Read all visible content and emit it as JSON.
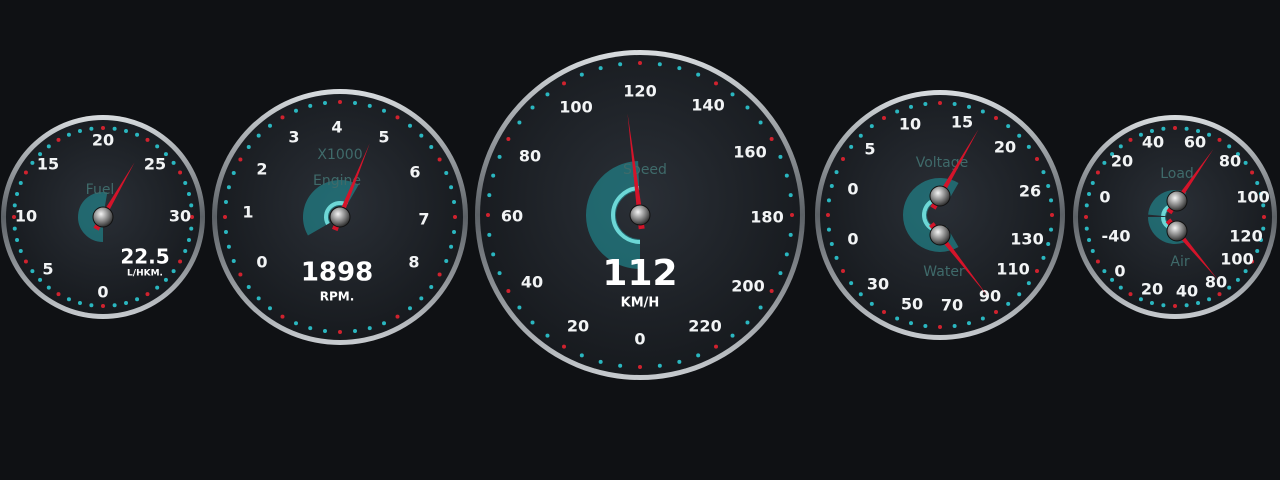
{
  "gauges": [
    {
      "dials": [
        {
          "label": "Fuel",
          "ticks": [
            0,
            5,
            10,
            15,
            20,
            25,
            30
          ]
        }
      ],
      "reading": 22.5,
      "unit": "L/HKM."
    },
    {
      "multiplier": "X1000",
      "dials": [
        {
          "label": "Engine",
          "ticks": [
            0,
            1,
            2,
            3,
            4,
            5,
            6,
            7,
            8
          ]
        }
      ],
      "reading": 1898,
      "unit": "RPM."
    },
    {
      "dials": [
        {
          "label": "Speed",
          "ticks": [
            0,
            20,
            40,
            60,
            80,
            100,
            120,
            140,
            160,
            180,
            200,
            220
          ]
        }
      ],
      "reading": 112,
      "unit": "KM/H"
    },
    {
      "dials": [
        {
          "label": "Voltage",
          "ticks": [
            0,
            5,
            10,
            15,
            20,
            26
          ]
        },
        {
          "label": "Water",
          "ticks": [
            0,
            30,
            50,
            70,
            90,
            110,
            130
          ]
        }
      ]
    },
    {
      "dials": [
        {
          "label": "Load",
          "ticks": [
            0,
            20,
            40,
            60,
            80,
            100
          ]
        },
        {
          "label": "Air",
          "ticks": [
            -40,
            0,
            20,
            40,
            80,
            100,
            120
          ]
        }
      ]
    }
  ]
}
